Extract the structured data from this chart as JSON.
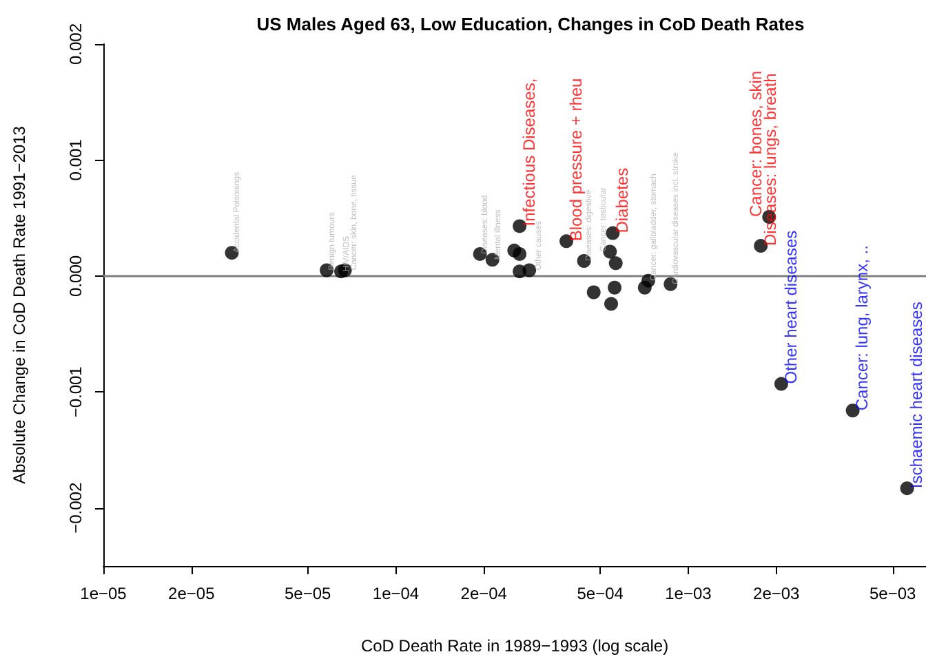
{
  "chart_data": {
    "type": "scatter",
    "title": "US Males Aged 63, Low Education, Changes in CoD Death Rates",
    "xlabel": "CoD Death Rate in 1989−1993 (log scale)",
    "ylabel": "Absolute Change in CoD Death Rate 1991−2013",
    "log": "x",
    "grid": false,
    "marker": "circle",
    "xlim": [
      1e-05,
      0.0065
    ],
    "xticks": [
      {
        "value": 1e-05,
        "label": "1e−05"
      },
      {
        "value": 2e-05,
        "label": "2e−05"
      },
      {
        "value": 5e-05,
        "label": "5e−05"
      },
      {
        "value": 0.0001,
        "label": "1e−04"
      },
      {
        "value": 0.0002,
        "label": "2e−04"
      },
      {
        "value": 0.0005,
        "label": "5e−04"
      },
      {
        "value": 0.001,
        "label": "1e−03"
      },
      {
        "value": 0.002,
        "label": "2e−03"
      },
      {
        "value": 0.005,
        "label": "5e−03"
      }
    ],
    "ylim": [
      -0.0025,
      0.002
    ],
    "yticks": [
      {
        "value": -0.002,
        "label": "−0.002"
      },
      {
        "value": -0.001,
        "label": "−0.001"
      },
      {
        "value": 0,
        "label": "0.000"
      },
      {
        "value": 0.001,
        "label": "0.001"
      },
      {
        "value": 0.002,
        "label": "0.002"
      }
    ],
    "ref_lines": [
      {
        "axis": "y",
        "value": 0,
        "color": "#808080"
      }
    ],
    "series": [
      {
        "color": "#000000",
        "x": [
          2.75e-05,
          5.8e-05,
          6.5e-05,
          6.7e-05,
          0.000194,
          0.000214,
          0.000254,
          0.000265,
          0.000265,
          0.000286,
          0.00044,
          0.000475,
          0.00054,
          0.000565,
          0.00056,
          0.000545,
          0.00071,
          0.00073,
          0.00087
        ],
        "values": [
          0.0002,
          5e-05,
          4e-05,
          5e-05,
          0.00019,
          0.00014,
          0.00022,
          0.00019,
          4e-05,
          5e-05,
          0.00013,
          -0.00014,
          0.00021,
          0.00011,
          -0.0001,
          -0.00024,
          -0.0001,
          -4e-05,
          -7e-05
        ],
        "value_labels": [
          "Accidental Poisonings",
          "Benign tumours",
          "HIV/AIDS",
          "Cancer: skin, bone, tissue",
          "Diseases: blood",
          "Mental illness",
          null,
          null,
          null,
          "Other causes",
          "Diseases: digestive",
          null,
          "Cancer: testicular",
          null,
          null,
          null,
          null,
          "Cancer: gallbladder, stomach",
          "Cardiovascular diseases incl. stroke"
        ]
      },
      {
        "color": "#000000",
        "x": [
          0.000265,
          0.000383,
          0.000552,
          0.00177,
          0.00189
        ],
        "values": [
          0.00043,
          0.0003,
          0.00037,
          0.00026,
          0.00051
        ],
        "value_labels": [
          "Infectious Diseases,",
          "Blood pressure + rheu",
          "Diabetes",
          "Diseases: lungs, breath",
          "Cancer: bones, skin"
        ]
      },
      {
        "color": "#000000",
        "x": [
          0.00208,
          0.00365,
          0.0056
        ],
        "values": [
          -0.00093,
          -0.00116,
          -0.00183
        ],
        "value_labels": [
          "Other heart diseases",
          "Cancer: lung, larynx, ..",
          "Ischaemic heart diseases"
        ]
      }
    ]
  }
}
